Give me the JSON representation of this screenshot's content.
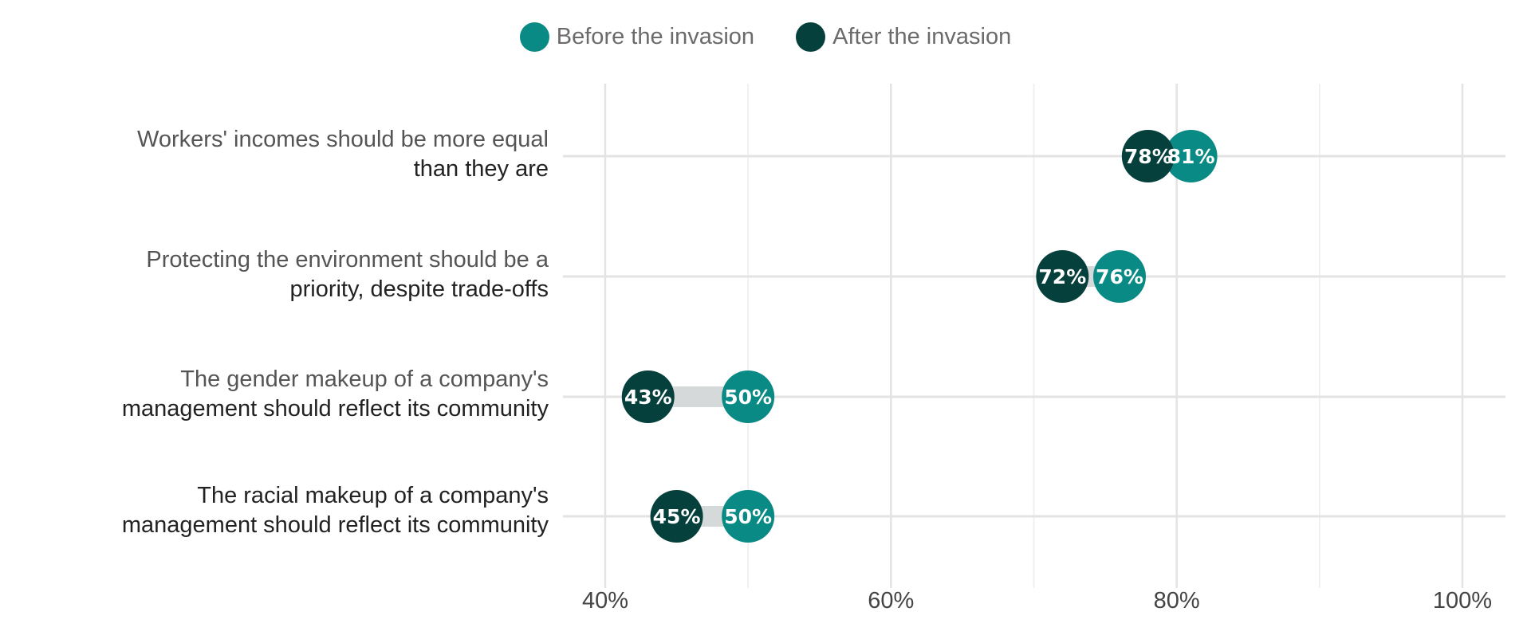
{
  "legend": {
    "before_label": "Before the invasion",
    "after_label": "After the invasion"
  },
  "chart_data": {
    "type": "dumbbell",
    "series": [
      {
        "name": "Before the invasion",
        "color": "#0a8a84"
      },
      {
        "name": "After the invasion",
        "color": "#06403c"
      }
    ],
    "categories": [
      {
        "line1": "Workers' incomes should be more equal",
        "line2": "than they are",
        "before": 81,
        "after": 78,
        "before_label": "81%",
        "after_label": "78%"
      },
      {
        "line1": "Protecting the environment should be a",
        "line2": "priority, despite trade-offs",
        "before": 76,
        "after": 72,
        "before_label": "76%",
        "after_label": "72%"
      },
      {
        "line1": "The gender makeup of a company's",
        "line2": "management should reflect its community",
        "before": 50,
        "after": 43,
        "before_label": "50%",
        "after_label": "43%"
      },
      {
        "line1": "The racial makeup of a company's",
        "line2": "management should reflect its community",
        "before": 50,
        "after": 45,
        "before_label": "50%",
        "after_label": "45%"
      }
    ],
    "xlim": [
      37,
      103
    ],
    "xticks": [
      {
        "value": 40,
        "label": "40%"
      },
      {
        "value": 60,
        "label": "60%"
      },
      {
        "value": 80,
        "label": "80%"
      },
      {
        "value": 100,
        "label": "100%"
      }
    ],
    "minor_gridlines": [
      50,
      70,
      90
    ],
    "grid": true,
    "legend_position": "top-center"
  }
}
